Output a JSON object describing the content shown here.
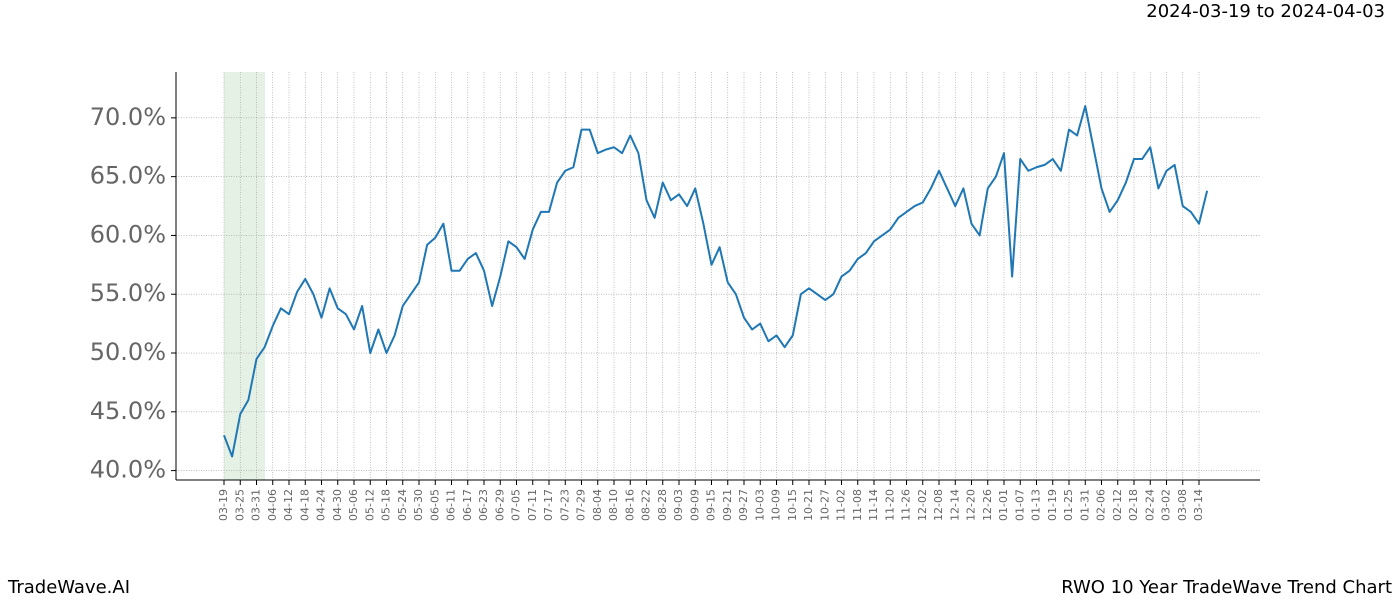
{
  "chart_data": {
    "type": "line",
    "subtitle": "2024-03-19 to 2024-04-03",
    "footer_left": "TradeWave.AI",
    "footer_right": "RWO 10 Year TradeWave Trend Chart",
    "categories": [
      "03-19",
      null,
      "03-25",
      null,
      "03-31",
      null,
      "04-06",
      null,
      "04-12",
      null,
      "04-18",
      null,
      "04-24",
      null,
      "04-30",
      null,
      "05-06",
      null,
      "05-12",
      null,
      "05-18",
      null,
      "05-24",
      null,
      "05-30",
      null,
      "06-05",
      null,
      "06-11",
      null,
      "06-17",
      null,
      "06-23",
      null,
      "06-29",
      null,
      "07-05",
      null,
      "07-11",
      null,
      "07-17",
      null,
      "07-23",
      null,
      "07-29",
      null,
      "08-04",
      null,
      "08-10",
      null,
      "08-16",
      null,
      "08-22",
      null,
      "08-28",
      null,
      "09-03",
      null,
      "09-09",
      null,
      "09-15",
      null,
      "09-21",
      null,
      "09-27",
      null,
      "10-03",
      null,
      "10-09",
      null,
      "10-15",
      null,
      "10-21",
      null,
      "10-27",
      null,
      "11-02",
      null,
      "11-08",
      null,
      "11-14",
      null,
      "11-20",
      null,
      "11-26",
      null,
      "12-02",
      null,
      "12-08",
      null,
      "12-14",
      null,
      "12-20",
      null,
      "12-26",
      null,
      "01-01",
      null,
      "01-07",
      null,
      "01-13",
      null,
      "01-19",
      null,
      "01-25",
      null,
      "01-31",
      null,
      "02-06",
      null,
      "02-12",
      null,
      "02-18",
      null,
      "02-24",
      null,
      "03-02",
      null,
      "03-08",
      null,
      "03-14",
      null
    ],
    "series": [
      {
        "name": "RWO",
        "color": "#1f77b4",
        "values": [
          43.0,
          41.2,
          44.8,
          46.0,
          49.5,
          50.5,
          52.3,
          53.8,
          53.3,
          55.2,
          56.3,
          55.0,
          53.0,
          55.5,
          53.8,
          53.3,
          52.0,
          54.0,
          50.0,
          52.0,
          50.0,
          51.5,
          54.0,
          55.0,
          56.0,
          59.2,
          59.8,
          61.0,
          57.0,
          57.0,
          58.0,
          58.5,
          57.0,
          54.0,
          56.5,
          59.5,
          59.0,
          58.0,
          60.5,
          62.0,
          62.0,
          64.5,
          65.5,
          65.8,
          69.0,
          69.0,
          67.0,
          67.3,
          67.5,
          67.0,
          68.5,
          67.0,
          63.0,
          61.5,
          64.5,
          63.0,
          63.5,
          62.5,
          64.0,
          61.0,
          57.5,
          59.0,
          56.0,
          55.0,
          53.0,
          52.0,
          52.5,
          51.0,
          51.5,
          50.5,
          51.5,
          55.0,
          55.5,
          55.0,
          54.5,
          55.0,
          56.5,
          57.0,
          58.0,
          58.5,
          59.5,
          60.0,
          60.5,
          61.5,
          62.0,
          62.5,
          62.8,
          64.0,
          65.5,
          64.0,
          62.5,
          64.0,
          61.0,
          60.0,
          64.0,
          65.0,
          67.0,
          56.5,
          66.5,
          65.5,
          65.8,
          66.0,
          66.5,
          65.5,
          69.0,
          68.5,
          71.0,
          67.5,
          64.0,
          62.0,
          63.0,
          64.5,
          66.5,
          66.5,
          67.5,
          64.0,
          65.5,
          66.0,
          62.5,
          62.0,
          61.0,
          63.8
        ]
      }
    ],
    "ylim": [
      39.2,
      73.9
    ],
    "yticks": [
      {
        "value": 40,
        "label": "40.0%"
      },
      {
        "value": 45,
        "label": "45.0%"
      },
      {
        "value": 50,
        "label": "50.0%"
      },
      {
        "value": 55,
        "label": "55.0%"
      },
      {
        "value": 60,
        "label": "60.0%"
      },
      {
        "value": 65,
        "label": "65.0%"
      },
      {
        "value": 70,
        "label": "70.0%"
      }
    ],
    "grid": true
  }
}
